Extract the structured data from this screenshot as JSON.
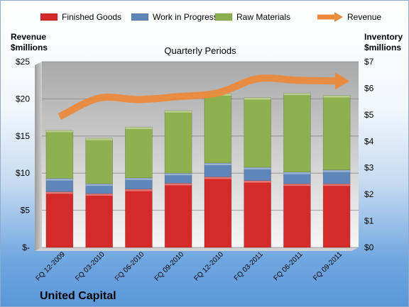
{
  "chart_data": {
    "type": "bar",
    "subtitle": "Quarterly Periods",
    "left_axis_label": [
      "Revenue",
      "$millions"
    ],
    "right_axis_label": [
      "Inventory",
      "$millions"
    ],
    "left_axis_ticks": [
      "$-",
      "$5",
      "$10",
      "$15",
      "$20",
      "$25"
    ],
    "right_axis_ticks": [
      "$0",
      "$1",
      "$2",
      "$3",
      "$4",
      "$5",
      "$6",
      "$7"
    ],
    "left_ylim": [
      0,
      25
    ],
    "right_ylim": [
      0,
      7
    ],
    "categories": [
      "FQ 12-2009",
      "FQ 03-2010",
      "FQ 06-2010",
      "FQ 09-2010",
      "FQ 12-2010",
      "FQ 03-2011",
      "FQ 06-2011",
      "FQ 09-2011"
    ],
    "series": [
      {
        "name": "Finished Goods",
        "axis": "right",
        "stacked": true,
        "color": "#d42a2a",
        "values": [
          2.1,
          2.03,
          2.2,
          2.42,
          2.66,
          2.52,
          2.4,
          2.4
        ]
      },
      {
        "name": "Work in Progress",
        "axis": "right",
        "stacked": true,
        "color": "#5f86b8",
        "values": [
          0.5,
          0.37,
          0.42,
          0.38,
          0.52,
          0.5,
          0.44,
          0.52
        ]
      },
      {
        "name": "Raw Materials",
        "axis": "right",
        "stacked": true,
        "color": "#8fb04f",
        "values": [
          1.82,
          1.72,
          1.92,
          2.36,
          2.62,
          2.63,
          2.98,
          2.81
        ]
      },
      {
        "name": "Revenue",
        "axis": "left",
        "type": "line",
        "color": "#ea8a3c",
        "values": [
          17.6,
          20.1,
          19.9,
          20.3,
          20.8,
          22.7,
          22.5,
          22.4
        ]
      }
    ],
    "grid": true,
    "legend_position": "top"
  },
  "footer": {
    "company": "United Capital"
  }
}
